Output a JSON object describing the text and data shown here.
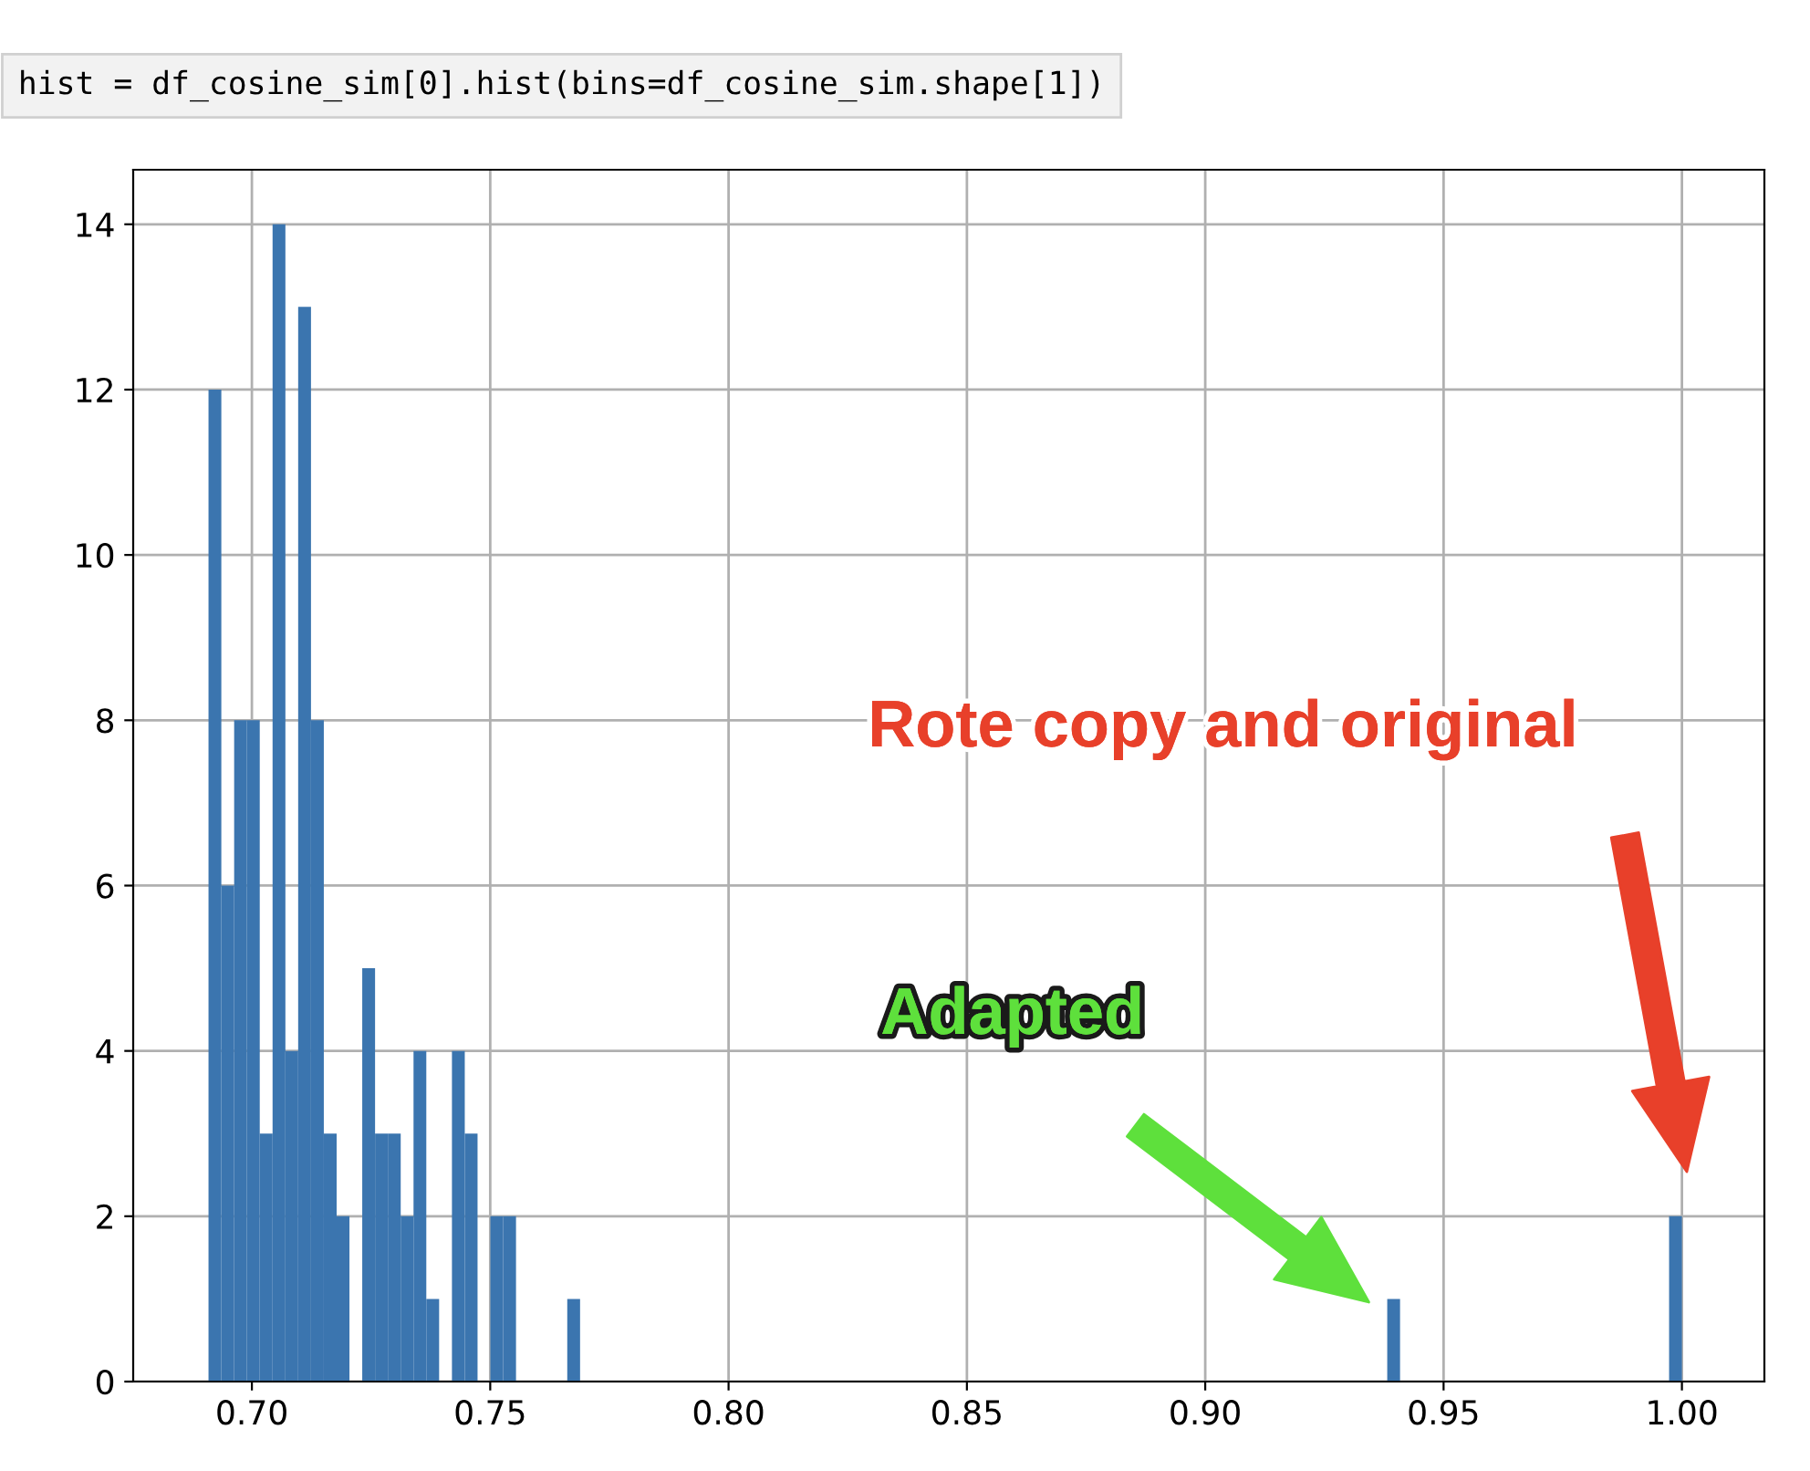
{
  "chart_data": {
    "type": "histogram",
    "annotations": [
      "hist = df_cosine_sim[0].hist(bins=df_cosine_sim.shape[1])",
      "Rote copy and original",
      "Adapted"
    ],
    "bins": [
      0.6909,
      0.69359,
      0.69628,
      0.69896,
      0.70165,
      0.70434,
      0.70703,
      0.70971,
      0.7124,
      0.71509,
      0.71778,
      0.72047,
      0.72315,
      0.72584,
      0.72853,
      0.73122,
      0.73391,
      0.73659,
      0.73928,
      0.74197,
      0.74466,
      0.74734,
      0.75003,
      0.75272,
      0.75541,
      0.7581,
      0.76078,
      0.76347,
      0.76616,
      0.76885,
      0.77153,
      0.77422,
      0.77691,
      0.7796,
      0.78229,
      0.78497,
      0.78766,
      0.79035,
      0.79304,
      0.79573,
      0.79841,
      0.8011,
      0.80379,
      0.80648,
      0.80916,
      0.81185,
      0.81454,
      0.81723,
      0.81992,
      0.8226,
      0.82529,
      0.82798,
      0.83067,
      0.83335,
      0.83604,
      0.83873,
      0.84142,
      0.84411,
      0.84679,
      0.84948,
      0.85217,
      0.85486,
      0.85755,
      0.86023,
      0.86292,
      0.86561,
      0.8683,
      0.87098,
      0.87367,
      0.87636,
      0.87905,
      0.88174,
      0.88442,
      0.88711,
      0.8898,
      0.89249,
      0.89517,
      0.89786,
      0.90055,
      0.90324,
      0.90593,
      0.90861,
      0.9113,
      0.91399,
      0.91668,
      0.91937,
      0.92205,
      0.92474,
      0.92743,
      0.93012,
      0.9328,
      0.93549,
      0.93818,
      0.94087,
      0.94356,
      0.94624,
      0.94893,
      0.95162,
      0.95431,
      0.95699,
      0.95968,
      0.96237,
      0.96506,
      0.96775,
      0.97043,
      0.97312,
      0.97581,
      0.9785,
      0.98119,
      0.98387,
      0.98656,
      0.98925,
      0.99194,
      0.99462,
      0.99731,
      1.0
    ],
    "values": [
      12,
      6,
      8,
      8,
      3,
      14,
      4,
      13,
      8,
      3,
      2,
      0,
      5,
      3,
      3,
      2,
      4,
      1,
      0,
      4,
      3,
      0,
      2,
      2,
      0,
      0,
      0,
      0,
      1,
      0,
      0,
      0,
      0,
      0,
      0,
      0,
      0,
      0,
      0,
      0,
      0,
      0,
      0,
      0,
      0,
      0,
      0,
      0,
      0,
      0,
      0,
      0,
      0,
      0,
      0,
      0,
      0,
      0,
      0,
      0,
      0,
      0,
      0,
      0,
      0,
      0,
      0,
      0,
      0,
      0,
      0,
      0,
      0,
      0,
      0,
      0,
      0,
      0,
      0,
      0,
      0,
      0,
      0,
      0,
      0,
      0,
      0,
      0,
      0,
      0,
      0,
      0,
      1,
      0,
      0,
      0,
      0,
      0,
      0,
      0,
      0,
      0,
      0,
      0,
      0,
      0,
      0,
      0,
      0,
      0,
      0,
      0,
      0,
      0,
      2
    ],
    "color": "#3b75af",
    "xlim": [
      0.6751,
      1.0173
    ],
    "xticks": [
      {
        "value": 0.7,
        "label": "0.70"
      },
      {
        "value": 0.75,
        "label": "0.75"
      },
      {
        "value": 0.8,
        "label": "0.80"
      },
      {
        "value": 0.85,
        "label": "0.85"
      },
      {
        "value": 0.9,
        "label": "0.90"
      },
      {
        "value": 0.95,
        "label": "0.95"
      },
      {
        "value": 1.0,
        "label": "1.00"
      }
    ],
    "ylim": [
      0,
      14.66
    ],
    "yticks": [
      0,
      2,
      4,
      6,
      8,
      10,
      12,
      14
    ],
    "grid": true
  }
}
